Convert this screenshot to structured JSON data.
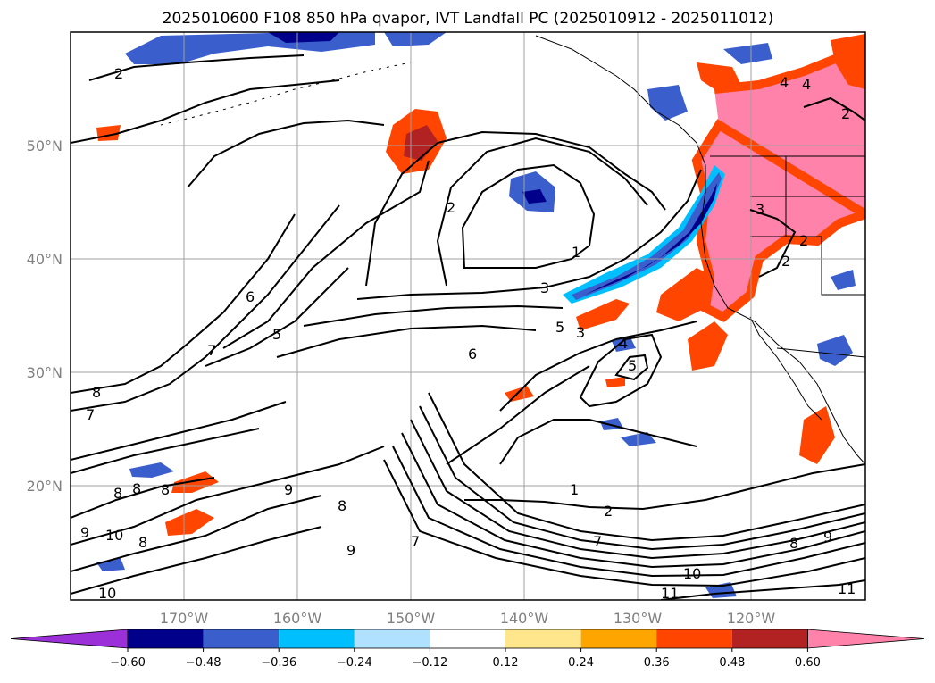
{
  "title": "2025010600 F108 850 hPa qvapor, IVT Landfall PC (2025010912 - 2025011012)",
  "axes": {
    "lon_ticks": [
      "170°W",
      "160°W",
      "150°W",
      "140°W",
      "130°W",
      "120°W"
    ],
    "lat_ticks": [
      "50°N",
      "40°N",
      "30°N",
      "20°N"
    ],
    "grid": true
  },
  "colorbar": {
    "orientation": "horizontal",
    "extend": "both",
    "ticks": [
      "−0.60",
      "−0.48",
      "−0.36",
      "−0.24",
      "−0.12",
      "0.12",
      "0.24",
      "0.36",
      "0.48",
      "0.60"
    ],
    "colors": [
      "#9b30d9",
      "#00008b",
      "#3a5fcd",
      "#00bfff",
      "#b0e2ff",
      "#ffffff",
      "#ffe68c",
      "#ffa500",
      "#ff4500",
      "#b22222",
      "#ff82ab"
    ]
  },
  "contour_labels": [
    {
      "text": "2"
    },
    {
      "text": "2"
    },
    {
      "text": "1"
    },
    {
      "text": "3"
    },
    {
      "text": "5"
    },
    {
      "text": "3"
    },
    {
      "text": "4"
    },
    {
      "text": "5"
    },
    {
      "text": "6"
    },
    {
      "text": "6"
    },
    {
      "text": "5"
    },
    {
      "text": "7"
    },
    {
      "text": "8"
    },
    {
      "text": "7"
    },
    {
      "text": "8"
    },
    {
      "text": "8"
    },
    {
      "text": "8"
    },
    {
      "text": "9"
    },
    {
      "text": "8"
    },
    {
      "text": "9"
    },
    {
      "text": "10"
    },
    {
      "text": "8"
    },
    {
      "text": "7"
    },
    {
      "text": "9"
    },
    {
      "text": "10"
    },
    {
      "text": "1"
    },
    {
      "text": "2"
    },
    {
      "text": "7"
    },
    {
      "text": "10"
    },
    {
      "text": "11"
    },
    {
      "text": "8"
    },
    {
      "text": "9"
    },
    {
      "text": "11"
    },
    {
      "text": "4"
    },
    {
      "text": "4"
    },
    {
      "text": "2"
    },
    {
      "text": "2"
    },
    {
      "text": "2"
    },
    {
      "text": "3"
    }
  ]
}
